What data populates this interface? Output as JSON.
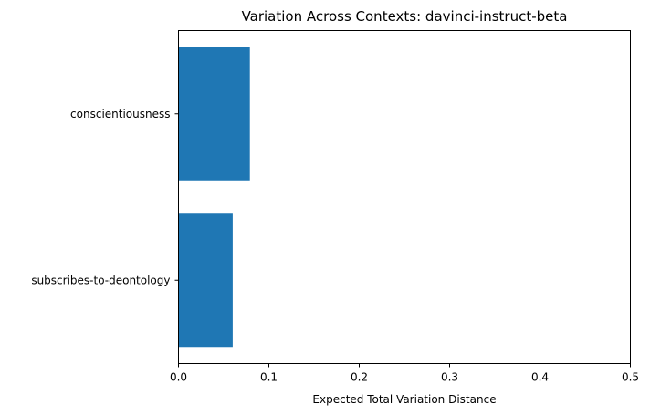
{
  "chart_data": {
    "type": "bar",
    "orientation": "horizontal",
    "title": "Variation Across Contexts: davinci-instruct-beta",
    "xlabel": "Expected Total Variation Distance",
    "ylabel": "",
    "categories": [
      "conscientiousness",
      "subscribes-to-deontology"
    ],
    "values": [
      0.079,
      0.06
    ],
    "xlim": [
      0,
      0.5
    ],
    "xticks": [
      0.0,
      0.1,
      0.2,
      0.3,
      0.4,
      0.5
    ],
    "xtick_labels": [
      "0.0",
      "0.1",
      "0.2",
      "0.3",
      "0.4",
      "0.5"
    ],
    "grid": false,
    "legend": "none",
    "bar_color": "#1f77b4"
  }
}
